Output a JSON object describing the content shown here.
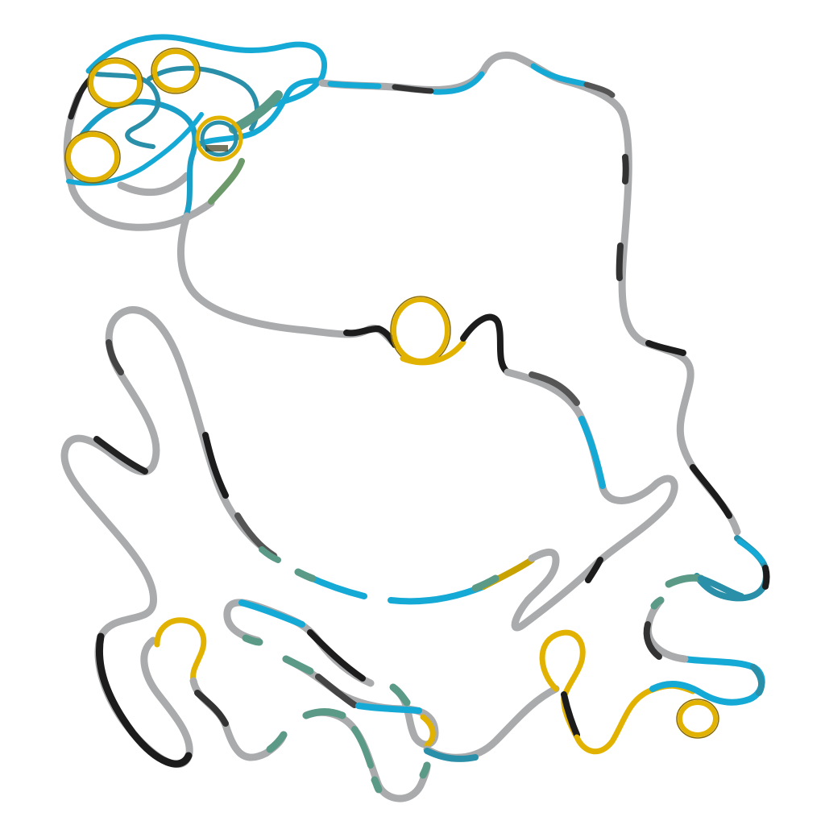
{
  "scene": {
    "subject": "protein-backbone-cartoon",
    "background_color": "#ffffff",
    "colors": {
      "coil_light": "#a9abad",
      "coil_dark": "#1c1c1c",
      "coil_mid": "#6e7072",
      "strand": "#15a9d6",
      "strand_teal": "#2a8fa8",
      "helix": "#e2b200",
      "helix_edge": "#8a6a00",
      "transition": "#5b9a87"
    }
  }
}
